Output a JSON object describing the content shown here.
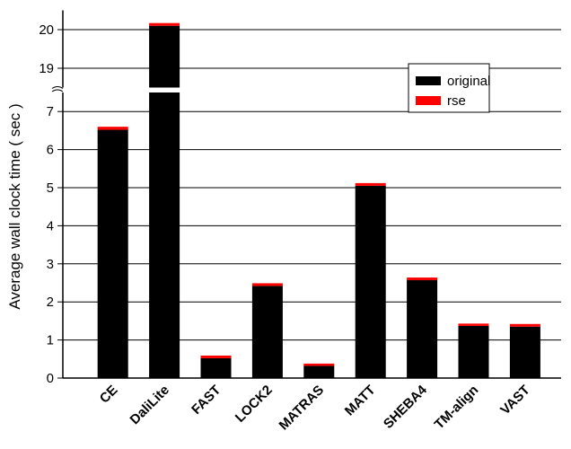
{
  "chart_data": {
    "type": "stacked_bar",
    "y_label": "Average wall clock time ( sec )",
    "categories": [
      "CE",
      "DaliLite",
      "FAST",
      "LOCK2",
      "MATRAS",
      "MATT",
      "SHEBA4",
      "TM-align",
      "VAST"
    ],
    "series": [
      {
        "name": "original",
        "color": "#000000",
        "values": [
          6.52,
          20.1,
          0.52,
          2.42,
          0.32,
          5.05,
          2.57,
          1.37,
          1.35
        ]
      },
      {
        "name": "rse",
        "color": "#ff0000",
        "values": [
          0.08,
          0.07,
          0.07,
          0.07,
          0.06,
          0.07,
          0.07,
          0.06,
          0.07
        ]
      }
    ],
    "ylim": [
      0,
      20.5
    ],
    "y_break": [
      7.5,
      18.5
    ],
    "yticks": [
      0,
      1,
      2,
      3,
      4,
      5,
      6,
      7,
      19,
      20
    ],
    "grid": true,
    "legend": "upper right"
  }
}
